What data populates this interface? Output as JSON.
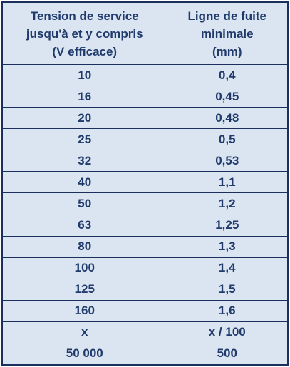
{
  "table": {
    "header": [
      [
        "Tension de service",
        "jusqu'à et y compris",
        "(V efficace)"
      ],
      [
        "Ligne de fuite",
        "minimale",
        "(mm)"
      ]
    ],
    "rows": [
      [
        "10",
        "0,4"
      ],
      [
        "16",
        "0,45"
      ],
      [
        "20",
        "0,48"
      ],
      [
        "25",
        "0,5"
      ],
      [
        "32",
        "0,53"
      ],
      [
        "40",
        "1,1"
      ],
      [
        "50",
        "1,2"
      ],
      [
        "63",
        "1,25"
      ],
      [
        "80",
        "1,3"
      ],
      [
        "100",
        "1,4"
      ],
      [
        "125",
        "1,5"
      ],
      [
        "160",
        "1,6"
      ],
      [
        "x",
        "x / 100"
      ],
      [
        "50 000",
        "500"
      ]
    ]
  }
}
